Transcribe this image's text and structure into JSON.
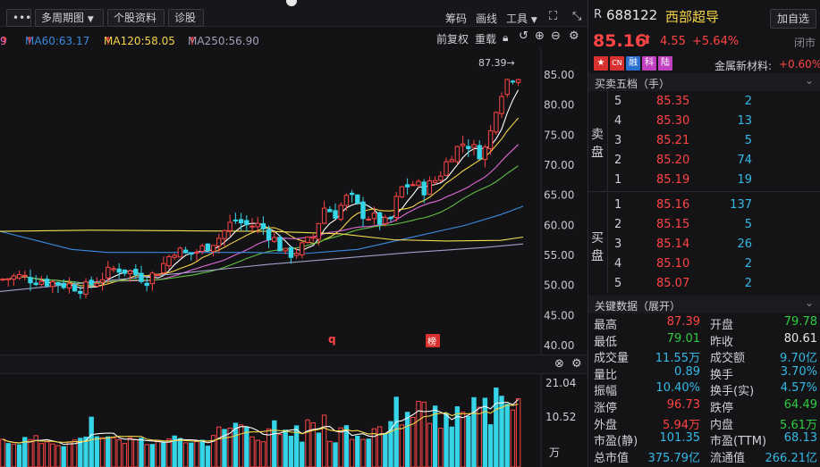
{
  "toolbar": {
    "menu_label": "•••",
    "period_label": "多周期图",
    "stock_info_label": "个股资料",
    "diagnose_label": "诊股",
    "chips_label": "筹码",
    "draw_label": "画线",
    "tools_label": "工具",
    "adjust_label": "前复权",
    "overlay_label": "重载"
  },
  "ma_legend": {
    "ma_prefix_value": "9",
    "ma60": "MA60:63.17",
    "ma120": "MA120:58.05",
    "ma250": "MA250:56.90"
  },
  "main_chart": {
    "high_marker": "87.39→",
    "y_ticks": [
      "85.00",
      "80.00",
      "75.00",
      "70.00",
      "65.00",
      "60.00",
      "55.00",
      "50.00",
      "45.00",
      "40.00"
    ],
    "event_markers": [
      {
        "label": "q",
        "type": "text"
      },
      {
        "label": "榜",
        "type": "badge"
      }
    ],
    "colors": {
      "up": "#ff4444",
      "down": "#35d4e6",
      "ma5": "#ffffff",
      "ma10": "#f5d547",
      "ma20": "#e06bd6",
      "ma30": "#5fbf3f",
      "ma60": "#3a8ae0",
      "ma120": "#f5e050",
      "ma250": "#a0a0c8"
    }
  },
  "volume_chart": {
    "y_ticks": [
      "21.04",
      "10.52",
      "万"
    ]
  },
  "quote": {
    "market_code": "R",
    "code": "688122",
    "name": "西部超导",
    "add_watch_label": "加自选",
    "price": "85.16",
    "change": "4.55",
    "change_pct": "+5.64%",
    "status": "闭市",
    "tags": [
      {
        "label": "CN",
        "color": "#d93030"
      },
      {
        "label": "融",
        "color": "#2a70d0"
      },
      {
        "label": "科",
        "color": "#c040c0"
      },
      {
        "label": "陆",
        "color": "#c040c0"
      }
    ],
    "sector_name": "金属新材料:",
    "sector_change": "+0.60%"
  },
  "order_book": {
    "title": "买卖五档（手）",
    "sell_label": [
      "卖",
      "盘"
    ],
    "buy_label": [
      "买",
      "盘"
    ],
    "sell": [
      {
        "level": "5",
        "price": "85.35",
        "volume": "2"
      },
      {
        "level": "4",
        "price": "85.30",
        "volume": "13"
      },
      {
        "level": "3",
        "price": "85.21",
        "volume": "5"
      },
      {
        "level": "2",
        "price": "85.20",
        "volume": "74"
      },
      {
        "level": "1",
        "price": "85.19",
        "volume": "19"
      }
    ],
    "buy": [
      {
        "level": "1",
        "price": "85.16",
        "volume": "137"
      },
      {
        "level": "2",
        "price": "85.15",
        "volume": "5"
      },
      {
        "level": "3",
        "price": "85.14",
        "volume": "26"
      },
      {
        "level": "4",
        "price": "85.10",
        "volume": "2"
      },
      {
        "level": "5",
        "price": "85.07",
        "volume": "2"
      }
    ]
  },
  "key_data": {
    "title": "关键数据（展开）",
    "left": [
      {
        "label": "最高",
        "value": "87.39",
        "color": "up"
      },
      {
        "label": "最低",
        "value": "79.01",
        "color": "down"
      },
      {
        "label": "成交量",
        "value": "11.55万",
        "color": "cyan"
      },
      {
        "label": "量比",
        "value": "0.89",
        "color": "cyan"
      },
      {
        "label": "振幅",
        "value": "10.40%",
        "color": "cyan"
      },
      {
        "label": "涨停",
        "value": "96.73",
        "color": "up"
      },
      {
        "label": "外盘",
        "value": "5.94万",
        "color": "up"
      },
      {
        "label": "市盈(静)",
        "value": "101.35",
        "color": "cyan"
      },
      {
        "label": "总市值",
        "value": "375.79亿",
        "color": "cyan"
      }
    ],
    "right": [
      {
        "label": "开盘",
        "value": "79.78",
        "color": "down"
      },
      {
        "label": "昨收",
        "value": "80.61",
        "color": "white"
      },
      {
        "label": "成交额",
        "value": "9.70亿",
        "color": "cyan"
      },
      {
        "label": "换手",
        "value": "3.70%",
        "color": "cyan"
      },
      {
        "label": "换手(实)",
        "value": "4.57%",
        "color": "cyan"
      },
      {
        "label": "跌停",
        "value": "64.49",
        "color": "down"
      },
      {
        "label": "内盘",
        "value": "5.61万",
        "color": "down"
      },
      {
        "label": "市盈(TTM)",
        "value": "68.13",
        "color": "cyan"
      },
      {
        "label": "流通值",
        "value": "266.21亿",
        "color": "cyan"
      }
    ]
  }
}
